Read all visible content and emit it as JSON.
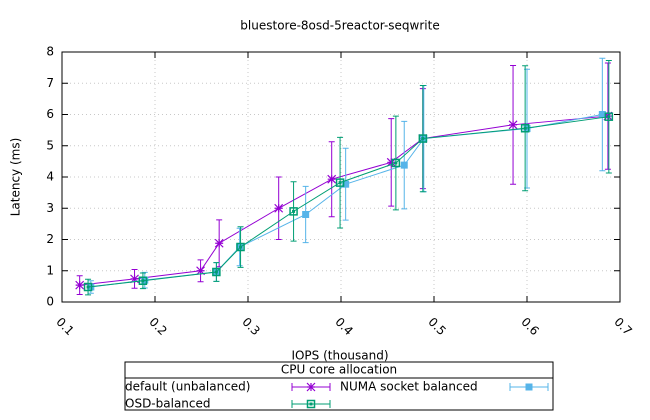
{
  "chart_data": {
    "type": "errorline",
    "title": "bluestore-8osd-5reactor-seqwrite",
    "x_label": "IOPS (thousand)",
    "y_label": "Latency (ms)",
    "legend_title": "CPU core allocation",
    "xlim": [
      0.1,
      0.7
    ],
    "xticks": [
      0.1,
      0.2,
      0.3,
      0.4,
      0.5,
      0.6,
      0.7
    ],
    "ylim": [
      0,
      8
    ],
    "yticks": [
      0,
      1,
      2,
      3,
      4,
      5,
      6,
      7,
      8
    ],
    "grid": true,
    "series": [
      {
        "name": "default (unbalanced)",
        "color": "#9400d3",
        "marker": "asterisk",
        "x": [
          0.119,
          0.178,
          0.249,
          0.269,
          0.333,
          0.39,
          0.454,
          0.488,
          0.585,
          0.687
        ],
        "values": [
          0.54,
          0.74,
          1.0,
          1.88,
          3.0,
          3.93,
          4.47,
          5.23,
          5.67,
          5.95
        ],
        "errors": [
          0.3,
          0.3,
          0.35,
          0.75,
          1.0,
          1.2,
          1.4,
          1.6,
          1.9,
          1.7
        ]
      },
      {
        "name": "NUMA socket balanced",
        "color": "#56b4e9",
        "marker": "square",
        "x": [
          0.131,
          0.189,
          0.266,
          0.291,
          0.362,
          0.405,
          0.468,
          0.489,
          0.6,
          0.681
        ],
        "values": [
          0.48,
          0.7,
          0.96,
          1.76,
          2.8,
          3.77,
          4.38,
          5.23,
          5.55,
          6.0
        ],
        "errors": [
          0.2,
          0.25,
          0.3,
          0.6,
          0.9,
          1.15,
          1.4,
          1.7,
          1.9,
          1.8
        ]
      },
      {
        "name": "OSD-balanced",
        "color": "#009e73",
        "marker": "square-open",
        "x": [
          0.128,
          0.187,
          0.266,
          0.292,
          0.349,
          0.399,
          0.459,
          0.488,
          0.598,
          0.688
        ],
        "values": [
          0.48,
          0.68,
          0.96,
          1.76,
          2.9,
          3.82,
          4.45,
          5.23,
          5.56,
          5.93
        ],
        "errors": [
          0.25,
          0.25,
          0.3,
          0.65,
          0.95,
          1.45,
          1.5,
          1.7,
          2.0,
          1.8
        ]
      }
    ]
  }
}
